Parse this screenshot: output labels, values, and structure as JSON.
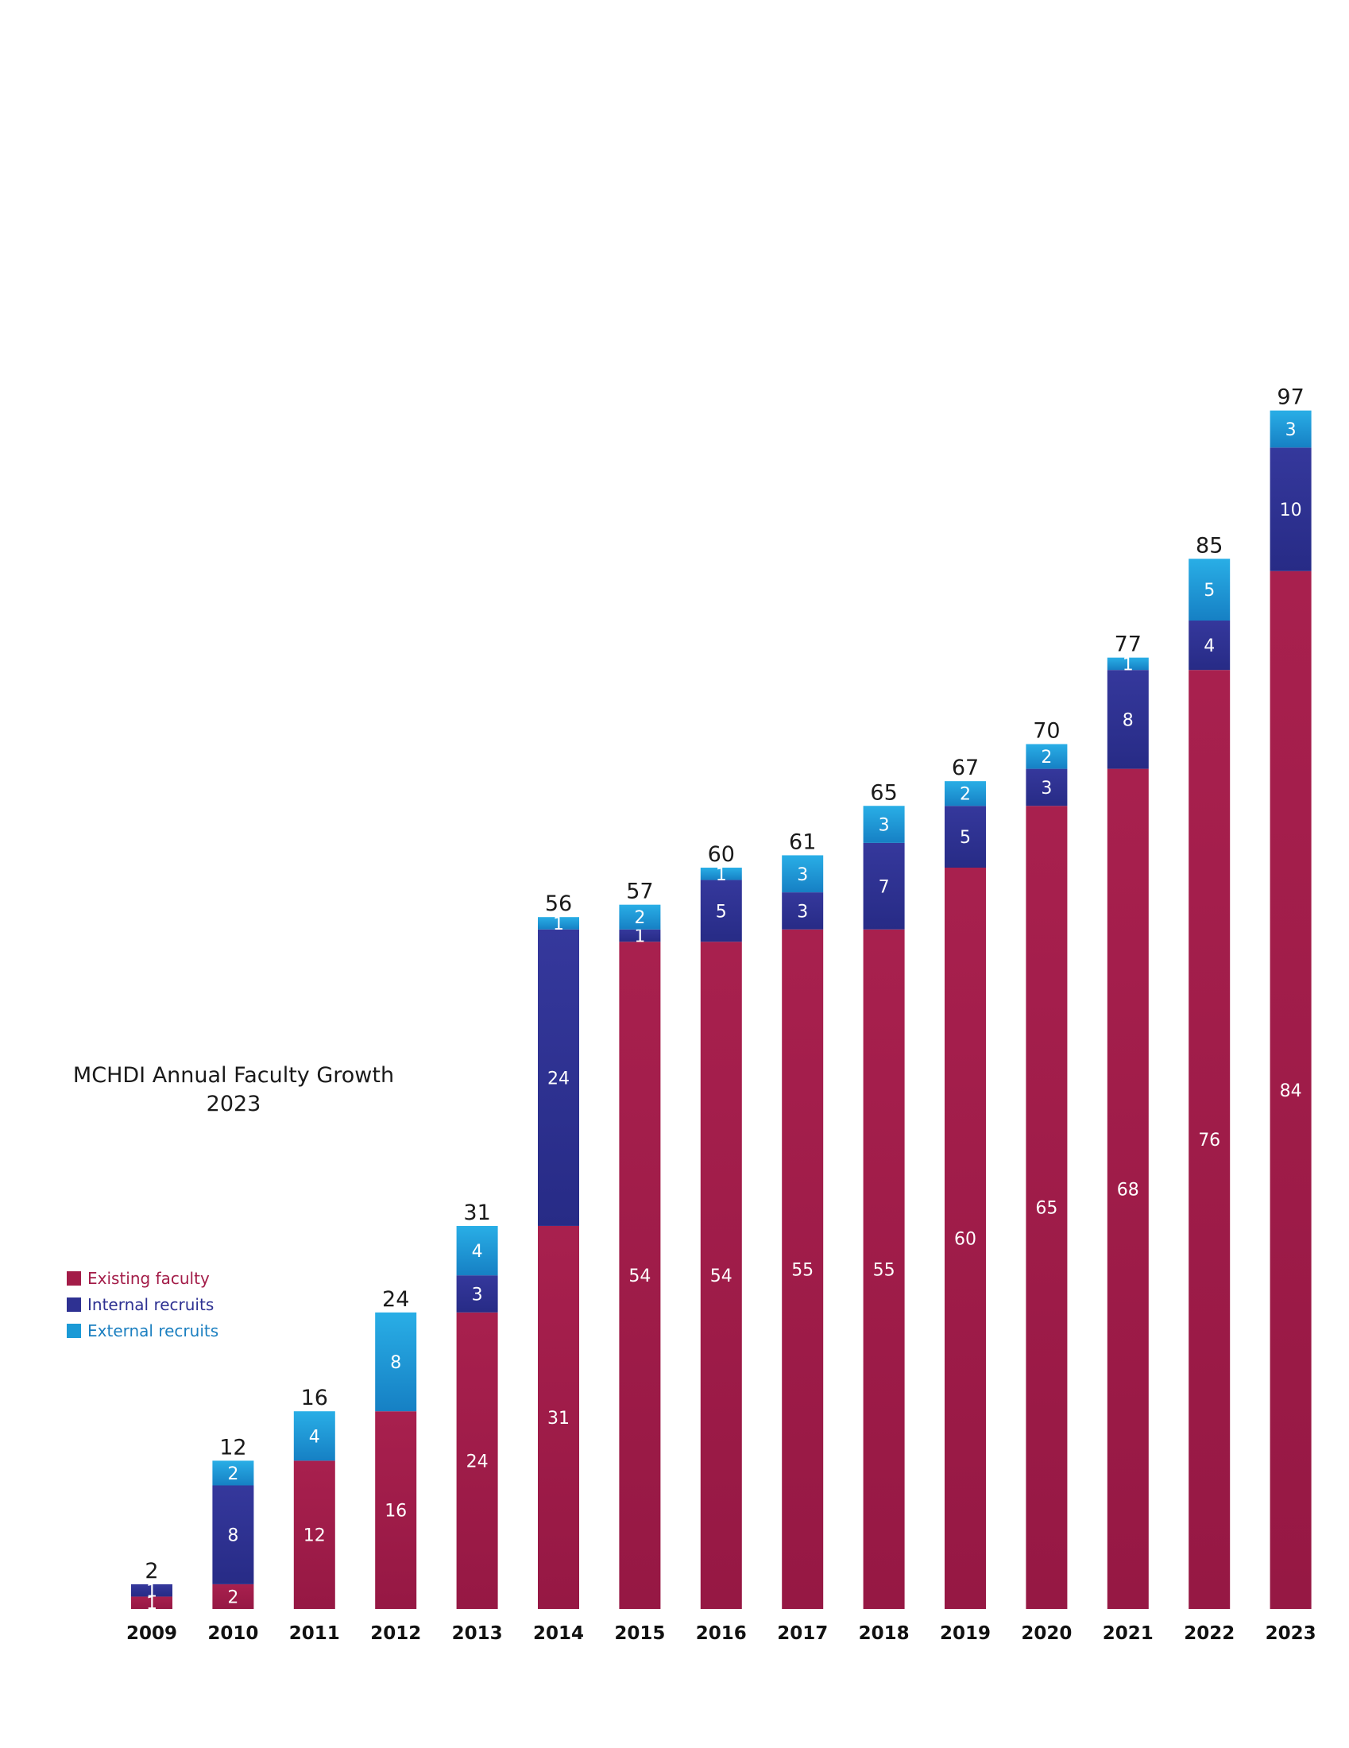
{
  "chart_data": {
    "type": "bar",
    "stacked": true,
    "title": "MCHDI Annual Faculty Growth",
    "subtitle": "2023",
    "xlabel": "",
    "ylabel": "",
    "ylim": [
      0,
      100
    ],
    "grid": false,
    "legend_position": "left",
    "categories": [
      "2009",
      "2010",
      "2011",
      "2012",
      "2013",
      "2014",
      "2015",
      "2016",
      "2017",
      "2018",
      "2019",
      "2020",
      "2021",
      "2022",
      "2023"
    ],
    "series": [
      {
        "name": "Existing faculty",
        "color": "#a31c48",
        "values": [
          1,
          2,
          12,
          16,
          24,
          31,
          54,
          54,
          55,
          55,
          60,
          65,
          68,
          76,
          84
        ]
      },
      {
        "name": "Internal recruits",
        "color": "#2e3192",
        "values": [
          1,
          8,
          0,
          0,
          3,
          24,
          1,
          5,
          3,
          7,
          5,
          3,
          8,
          4,
          10
        ]
      },
      {
        "name": "External recruits",
        "color": "#1b9ad6",
        "values": [
          0,
          2,
          4,
          8,
          4,
          1,
          2,
          1,
          3,
          3,
          2,
          2,
          1,
          5,
          3
        ]
      }
    ],
    "totals": [
      2,
      12,
      16,
      24,
      31,
      56,
      57,
      60,
      61,
      65,
      67,
      70,
      77,
      85,
      97
    ]
  }
}
